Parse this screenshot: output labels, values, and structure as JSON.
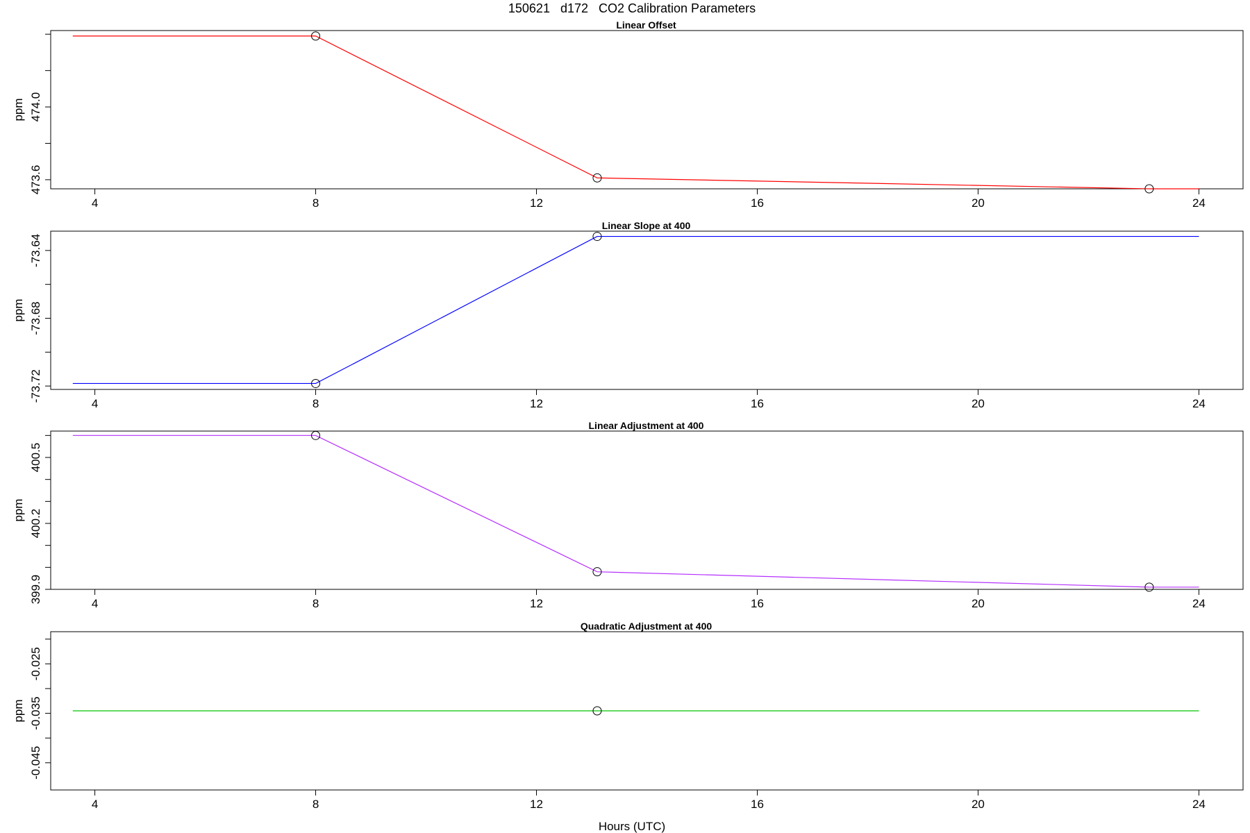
{
  "figure": {
    "title": "150621   d172   CO2 Calibration Parameters",
    "xlabel": "Hours (UTC)"
  },
  "chart_data": [
    {
      "type": "line",
      "title": "Linear Offset",
      "ylabel": "ppm",
      "color": "#ff0000",
      "xlim": [
        3.2,
        24.8
      ],
      "ylim": [
        473.55,
        474.42
      ],
      "x_ticks": [
        4,
        8,
        12,
        16,
        20,
        24
      ],
      "y_ticks": [
        473.6,
        473.8,
        474.0,
        474.2,
        474.4
      ],
      "y_tick_labels": [
        "473.6",
        "",
        "474.0",
        "",
        ""
      ],
      "x": [
        3.6,
        8.0,
        13.1,
        23.1,
        24.0
      ],
      "y": [
        474.39,
        474.39,
        473.61,
        473.55,
        473.55
      ],
      "points": {
        "x": [
          8.0,
          13.1,
          23.1
        ],
        "y": [
          474.39,
          473.61,
          473.55
        ]
      }
    },
    {
      "type": "line",
      "title": "Linear Slope at 400",
      "ylabel": "ppm",
      "color": "#0000ff",
      "xlim": [
        3.2,
        24.8
      ],
      "ylim": [
        -73.722,
        -73.6286
      ],
      "x_ticks": [
        4,
        8,
        12,
        16,
        20,
        24
      ],
      "y_ticks": [
        -73.72,
        -73.7,
        -73.68,
        -73.66,
        -73.64,
        -73.62
      ],
      "y_tick_labels": [
        "-73.72",
        "",
        "-73.68",
        "",
        "-73.64",
        ""
      ],
      "x": [
        3.6,
        8.0,
        13.1,
        24.0
      ],
      "y": [
        -73.7185,
        -73.7185,
        -73.6317,
        -73.6317
      ],
      "points": {
        "x": [
          8.0,
          13.1
        ],
        "y": [
          -73.7185,
          -73.6317
        ]
      }
    },
    {
      "type": "line",
      "title": "Linear Adjustment at 400",
      "ylabel": "ppm",
      "color": "#b52eff",
      "xlim": [
        3.2,
        24.8
      ],
      "ylim": [
        399.9,
        400.62
      ],
      "x_ticks": [
        4,
        8,
        12,
        16,
        20,
        24
      ],
      "y_ticks": [
        399.9,
        400.0,
        400.1,
        400.2,
        400.3,
        400.4,
        400.5,
        400.6
      ],
      "y_tick_labels": [
        "399.9",
        "",
        "",
        "400.2",
        "",
        "",
        "400.5",
        ""
      ],
      "x": [
        3.6,
        8.0,
        13.1,
        23.1,
        24.0
      ],
      "y": [
        400.6,
        400.6,
        399.98,
        399.91,
        399.91
      ],
      "points": {
        "x": [
          8.0,
          13.1,
          23.1
        ],
        "y": [
          400.6,
          399.98,
          399.91
        ]
      }
    },
    {
      "type": "line",
      "title": "Quadratic Adjustment at 400",
      "ylabel": "ppm",
      "color": "#00c800",
      "xlim": [
        3.2,
        24.8
      ],
      "ylim": [
        -0.0505,
        -0.0185
      ],
      "x_ticks": [
        4,
        8,
        12,
        16,
        20,
        24
      ],
      "y_ticks": [
        -0.045,
        -0.04,
        -0.035,
        -0.03,
        -0.025,
        -0.02
      ],
      "y_tick_labels": [
        "-0.045",
        "",
        "-0.035",
        "",
        "-0.025",
        ""
      ],
      "x": [
        3.6,
        24.0
      ],
      "y": [
        -0.0345,
        -0.0345
      ],
      "points": {
        "x": [
          13.1
        ],
        "y": [
          -0.0345
        ]
      }
    }
  ]
}
